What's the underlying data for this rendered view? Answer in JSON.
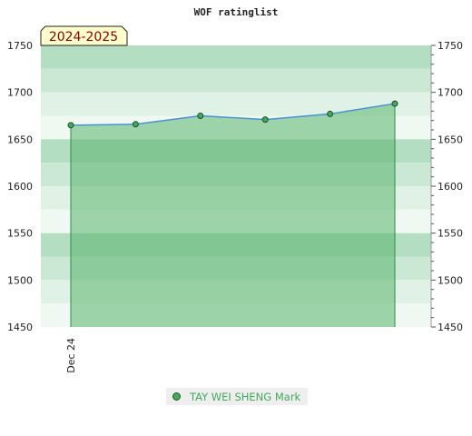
{
  "chart_data": {
    "type": "line",
    "title": "WOF ratinglist",
    "season_badge": "2024-2025",
    "categories": [
      "Dec 24",
      "",
      "",
      "",
      "",
      ""
    ],
    "series": [
      {
        "name": "TAY WEI SHENG Mark",
        "values": [
          1665,
          1666,
          1675,
          1671,
          1677,
          1688
        ]
      }
    ],
    "ylim": [
      1450,
      1750
    ],
    "y_ticks": [
      "1750",
      "1700",
      "1650",
      "1600",
      "1550",
      "1500",
      "1450"
    ],
    "y_tick_values": [
      1750,
      1700,
      1650,
      1600,
      1550,
      1500,
      1450
    ],
    "grid": false,
    "legend_position": "bottom",
    "colors": {
      "line": "#4a90d9",
      "area": "#5ab46e",
      "marker": "#3faa5a",
      "band_dark": "#b3dec1",
      "band_mid": "#cbe8d4",
      "band_light": "#e0f1e5",
      "band_pale": "#f0f8f2",
      "badge_bg": "#ffffcc",
      "legend_text": "#3faa5a"
    }
  }
}
